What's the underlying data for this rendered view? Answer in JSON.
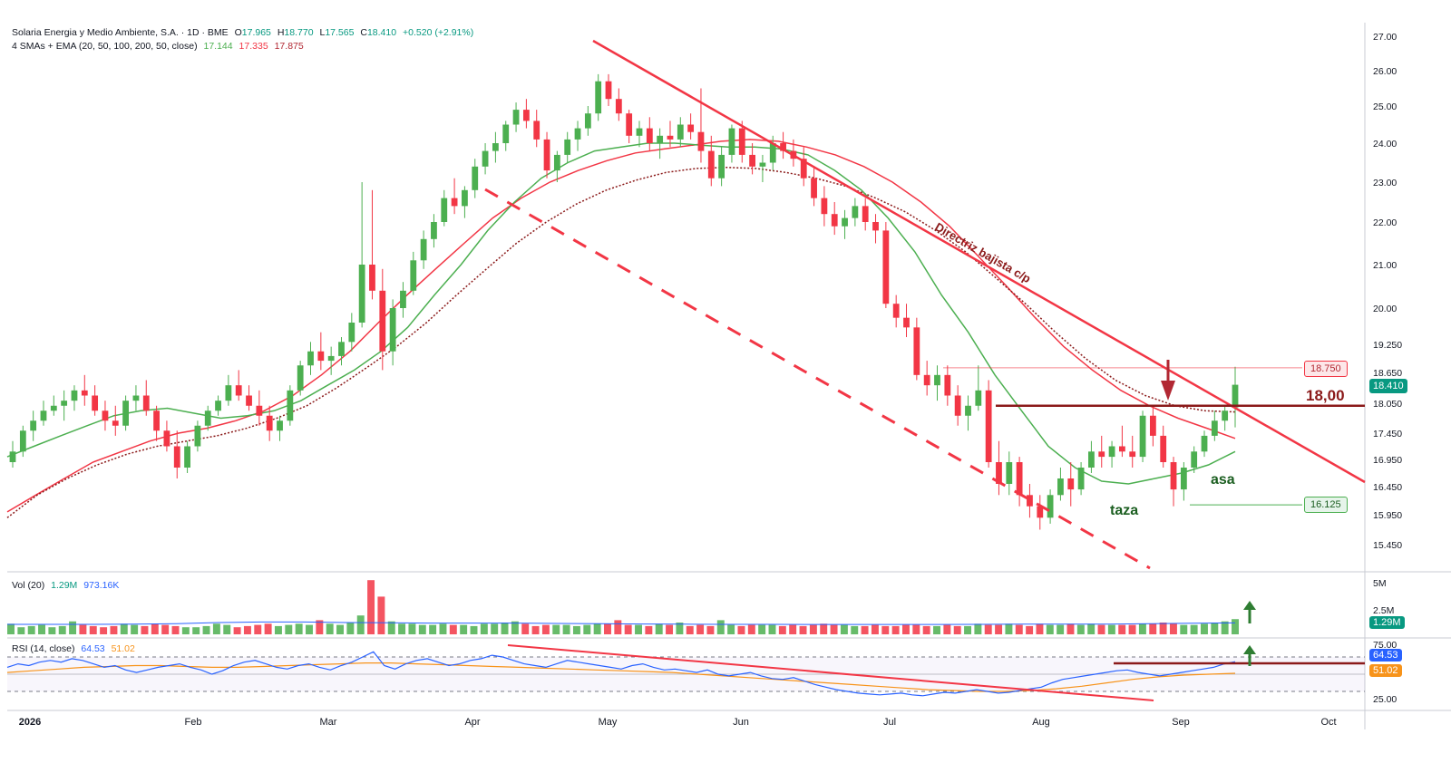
{
  "header": {
    "symbol_line": "Solaria Energia y Medio Ambiente, S.A. · 1D · BME",
    "o_label": "O",
    "o_value": "17.965",
    "h_label": "H",
    "h_value": "18.770",
    "l_label": "L",
    "l_value": "17.565",
    "c_label": "C",
    "c_value": "18.410",
    "change": "+0.520 (+2.91%)",
    "ma_label": "4 SMAs + EMA (20, 50, 100, 200, 50, close)",
    "ma_values": [
      "17.144",
      "17.335",
      "17.875"
    ],
    "ma_colors": [
      "#4caf50",
      "#f23645",
      "#b22833"
    ]
  },
  "volume_legend": {
    "label": "Vol (20)",
    "value1": "1.29M",
    "value2": "973.16K"
  },
  "rsi_legend": {
    "label": "RSI (14, close)",
    "value1": "64.53",
    "value2": "51.02"
  },
  "annotations": {
    "trendline_label": "Directriz bajista c/p",
    "level_label": "18,00",
    "cup_label": "taza",
    "handle_label": "asa",
    "upper_price_tag": "18.750",
    "lower_price_tag": "16.125",
    "last_price_tag": "18.410",
    "vol_tag": "1.29M",
    "vol_tag2": "973.16K",
    "rsi_tag1": "64.53",
    "rsi_tag2": "51.02"
  },
  "colors": {
    "up": "#4caf50",
    "down": "#f23645",
    "ma_green": "#4caf50",
    "ma_red": "#f23645",
    "ma_dotted": "#8b1a1a",
    "trend": "#f23645",
    "level": "#8b1a1a",
    "rsi": "#2962ff",
    "rsi_ma": "#f7931a",
    "arrow_green": "#2e7d32"
  },
  "chart_data": {
    "type": "candlestick",
    "price_axis": {
      "ticks": [
        "27.00",
        "26.00",
        "25.00",
        "24.00",
        "23.00",
        "22.00",
        "21.00",
        "20.00",
        "19.250",
        "18.650",
        "18.050",
        "17.450",
        "16.950",
        "16.450",
        "15.950",
        "15.450"
      ],
      "range": [
        15.2,
        27.2
      ]
    },
    "x_axis": {
      "labels": [
        "2026",
        "Feb",
        "Mar",
        "Apr",
        "May",
        "Jun",
        "Jul",
        "Aug",
        "Sep",
        "Oct"
      ]
    },
    "volume_axis": {
      "ticks": [
        "5M",
        "2.5M"
      ]
    },
    "rsi_axis": {
      "ticks": [
        "75.00",
        "25.00"
      ],
      "levels": [
        70,
        30,
        50
      ]
    },
    "ohlc": [
      [
        16.9,
        17.3,
        16.8,
        17.1
      ],
      [
        17.1,
        17.6,
        17.0,
        17.5
      ],
      [
        17.5,
        17.9,
        17.3,
        17.7
      ],
      [
        17.7,
        18.1,
        17.6,
        17.9
      ],
      [
        17.9,
        18.2,
        17.8,
        18.0
      ],
      [
        18.0,
        18.3,
        17.7,
        18.1
      ],
      [
        18.1,
        18.4,
        17.9,
        18.3
      ],
      [
        18.3,
        18.6,
        18.0,
        18.2
      ],
      [
        18.2,
        18.4,
        17.8,
        17.9
      ],
      [
        17.9,
        18.1,
        17.5,
        17.7
      ],
      [
        17.7,
        18.0,
        17.4,
        17.6
      ],
      [
        17.6,
        18.2,
        17.5,
        18.1
      ],
      [
        18.1,
        18.4,
        17.9,
        18.2
      ],
      [
        18.2,
        18.5,
        17.8,
        17.9
      ],
      [
        17.9,
        18.0,
        17.3,
        17.5
      ],
      [
        17.5,
        17.7,
        17.1,
        17.2
      ],
      [
        17.2,
        17.5,
        16.6,
        16.8
      ],
      [
        16.8,
        17.3,
        16.7,
        17.2
      ],
      [
        17.2,
        17.7,
        17.1,
        17.6
      ],
      [
        17.6,
        18.0,
        17.5,
        17.9
      ],
      [
        17.9,
        18.2,
        17.8,
        18.1
      ],
      [
        18.1,
        18.6,
        18.0,
        18.4
      ],
      [
        18.4,
        18.7,
        18.1,
        18.2
      ],
      [
        18.2,
        18.4,
        17.9,
        18.0
      ],
      [
        18.0,
        18.3,
        17.6,
        17.8
      ],
      [
        17.8,
        18.0,
        17.3,
        17.5
      ],
      [
        17.5,
        17.8,
        17.3,
        17.7
      ],
      [
        17.7,
        18.4,
        17.6,
        18.3
      ],
      [
        18.3,
        18.9,
        18.2,
        18.8
      ],
      [
        18.8,
        19.3,
        18.6,
        19.1
      ],
      [
        19.1,
        19.5,
        18.7,
        18.9
      ],
      [
        18.9,
        19.2,
        18.6,
        19.0
      ],
      [
        19.0,
        19.4,
        18.8,
        19.3
      ],
      [
        19.3,
        19.9,
        19.1,
        19.7
      ],
      [
        19.7,
        23.0,
        19.6,
        21.0
      ],
      [
        21.0,
        22.8,
        20.2,
        20.4
      ],
      [
        20.4,
        20.9,
        18.7,
        19.1
      ],
      [
        19.1,
        20.2,
        18.8,
        20.0
      ],
      [
        20.0,
        20.6,
        19.8,
        20.4
      ],
      [
        20.4,
        21.3,
        20.3,
        21.1
      ],
      [
        21.1,
        21.8,
        20.9,
        21.6
      ],
      [
        21.6,
        22.2,
        21.4,
        22.0
      ],
      [
        22.0,
        22.8,
        21.9,
        22.6
      ],
      [
        22.6,
        23.1,
        22.2,
        22.4
      ],
      [
        22.4,
        22.9,
        22.1,
        22.8
      ],
      [
        22.8,
        23.6,
        22.6,
        23.4
      ],
      [
        23.4,
        24.0,
        23.2,
        23.8
      ],
      [
        23.8,
        24.3,
        23.5,
        24.0
      ],
      [
        24.0,
        24.6,
        23.8,
        24.5
      ],
      [
        24.5,
        25.1,
        24.3,
        24.9
      ],
      [
        24.9,
        25.2,
        24.4,
        24.6
      ],
      [
        24.6,
        24.9,
        23.9,
        24.1
      ],
      [
        24.1,
        24.3,
        23.1,
        23.3
      ],
      [
        23.3,
        23.8,
        23.0,
        23.7
      ],
      [
        23.7,
        24.3,
        23.5,
        24.1
      ],
      [
        24.1,
        24.6,
        23.8,
        24.4
      ],
      [
        24.4,
        25.0,
        24.2,
        24.8
      ],
      [
        24.8,
        25.9,
        24.6,
        25.7
      ],
      [
        25.7,
        25.9,
        25.0,
        25.2
      ],
      [
        25.2,
        25.5,
        24.6,
        24.8
      ],
      [
        24.8,
        24.9,
        24.0,
        24.2
      ],
      [
        24.2,
        24.6,
        23.9,
        24.4
      ],
      [
        24.4,
        24.7,
        23.8,
        24.0
      ],
      [
        24.0,
        24.4,
        23.6,
        24.2
      ],
      [
        24.2,
        24.6,
        23.9,
        24.1
      ],
      [
        24.1,
        24.7,
        23.9,
        24.5
      ],
      [
        24.5,
        24.8,
        24.1,
        24.3
      ],
      [
        24.3,
        25.5,
        23.5,
        23.8
      ],
      [
        23.8,
        24.2,
        22.9,
        23.1
      ],
      [
        23.1,
        23.9,
        22.9,
        23.7
      ],
      [
        23.7,
        24.5,
        23.5,
        24.4
      ],
      [
        24.4,
        24.6,
        23.5,
        23.7
      ],
      [
        23.7,
        24.0,
        23.2,
        23.4
      ],
      [
        23.4,
        23.7,
        23.0,
        23.5
      ],
      [
        23.5,
        24.2,
        23.3,
        24.0
      ],
      [
        24.0,
        24.3,
        23.6,
        23.8
      ],
      [
        23.8,
        24.1,
        23.4,
        23.6
      ],
      [
        23.6,
        23.9,
        22.9,
        23.1
      ],
      [
        23.1,
        23.4,
        22.4,
        22.6
      ],
      [
        22.6,
        22.9,
        21.9,
        22.2
      ],
      [
        22.2,
        22.5,
        21.7,
        21.9
      ],
      [
        21.9,
        22.3,
        21.6,
        22.1
      ],
      [
        22.1,
        22.6,
        21.9,
        22.4
      ],
      [
        22.4,
        22.6,
        21.8,
        22.0
      ],
      [
        22.0,
        22.2,
        21.5,
        21.8
      ],
      [
        21.8,
        22.0,
        20.0,
        20.1
      ],
      [
        20.1,
        20.3,
        19.6,
        19.8
      ],
      [
        19.8,
        20.1,
        19.4,
        19.6
      ],
      [
        19.6,
        19.8,
        18.5,
        18.6
      ],
      [
        18.6,
        18.9,
        18.2,
        18.4
      ],
      [
        18.4,
        18.8,
        18.1,
        18.6
      ],
      [
        18.6,
        18.8,
        18.0,
        18.2
      ],
      [
        18.2,
        18.4,
        17.6,
        17.8
      ],
      [
        17.8,
        18.2,
        17.5,
        18.0
      ],
      [
        18.0,
        18.8,
        17.9,
        18.3
      ],
      [
        18.3,
        18.5,
        16.8,
        16.9
      ],
      [
        16.9,
        17.3,
        16.3,
        16.5
      ],
      [
        16.5,
        17.1,
        16.3,
        16.9
      ],
      [
        16.9,
        17.0,
        16.1,
        16.3
      ],
      [
        16.3,
        16.5,
        15.9,
        16.1
      ],
      [
        16.1,
        16.3,
        15.7,
        15.9
      ],
      [
        15.9,
        16.4,
        15.8,
        16.3
      ],
      [
        16.3,
        16.8,
        16.2,
        16.6
      ],
      [
        16.6,
        16.9,
        16.1,
        16.4
      ],
      [
        16.4,
        16.9,
        16.3,
        16.8
      ],
      [
        16.8,
        17.3,
        16.7,
        17.1
      ],
      [
        17.1,
        17.4,
        16.8,
        17.0
      ],
      [
        17.0,
        17.3,
        16.8,
        17.2
      ],
      [
        17.2,
        17.6,
        17.0,
        17.1
      ],
      [
        17.1,
        17.4,
        16.8,
        17.0
      ],
      [
        17.0,
        17.9,
        16.9,
        17.8
      ],
      [
        17.8,
        18.0,
        17.2,
        17.4
      ],
      [
        17.4,
        17.6,
        16.8,
        16.9
      ],
      [
        16.9,
        17.0,
        16.1,
        16.4
      ],
      [
        16.4,
        16.9,
        16.2,
        16.8
      ],
      [
        16.8,
        17.2,
        16.7,
        17.1
      ],
      [
        17.1,
        17.5,
        17.0,
        17.4
      ],
      [
        17.4,
        17.9,
        17.3,
        17.7
      ],
      [
        17.7,
        18.0,
        17.5,
        17.9
      ],
      [
        17.965,
        18.77,
        17.565,
        18.41
      ]
    ],
    "sma_green": [
      17.0,
      17.2,
      17.4,
      17.6,
      17.8,
      17.9,
      17.95,
      17.85,
      17.75,
      17.8,
      17.9,
      18.1,
      18.4,
      18.7,
      19.1,
      19.6,
      20.3,
      21.0,
      21.8,
      22.5,
      23.1,
      23.5,
      23.8,
      23.9,
      24.0,
      24.0,
      23.95,
      23.9,
      23.9,
      23.85,
      23.7,
      23.3,
      22.8,
      22.1,
      21.3,
      20.3,
      19.5,
      18.6,
      17.9,
      17.2,
      16.8,
      16.55,
      16.5,
      16.6,
      16.7,
      16.85,
      17.1
    ],
    "sma_red": [
      16.0,
      16.3,
      16.6,
      16.9,
      17.1,
      17.3,
      17.45,
      17.55,
      17.7,
      17.9,
      18.2,
      18.6,
      19.1,
      19.7,
      20.3,
      20.9,
      21.5,
      22.1,
      22.6,
      23.0,
      23.3,
      23.55,
      23.75,
      23.85,
      23.95,
      24.05,
      24.1,
      24.05,
      23.9,
      23.7,
      23.4,
      23.0,
      22.5,
      21.9,
      21.2,
      20.5,
      19.8,
      19.2,
      18.7,
      18.3,
      18.0,
      17.75,
      17.55,
      17.35
    ],
    "ema_dotted": [
      15.9,
      16.3,
      16.6,
      16.85,
      17.05,
      17.2,
      17.3,
      17.4,
      17.55,
      17.75,
      18.0,
      18.35,
      18.75,
      19.2,
      19.7,
      20.3,
      20.9,
      21.5,
      22.0,
      22.45,
      22.8,
      23.05,
      23.25,
      23.35,
      23.38,
      23.35,
      23.25,
      23.1,
      22.9,
      22.6,
      22.25,
      21.8,
      21.3,
      20.7,
      20.1,
      19.5,
      18.95,
      18.5,
      18.2,
      18.0,
      17.9,
      17.875
    ],
    "volume": [
      0.9,
      0.6,
      0.7,
      0.8,
      0.6,
      0.7,
      1.1,
      0.8,
      0.7,
      0.6,
      0.7,
      0.9,
      0.8,
      0.7,
      0.9,
      0.8,
      0.7,
      0.6,
      0.6,
      0.7,
      0.9,
      0.8,
      0.6,
      0.7,
      0.8,
      0.9,
      0.7,
      0.8,
      0.9,
      0.8,
      1.2,
      0.9,
      0.8,
      1.0,
      1.6,
      4.6,
      3.2,
      1.1,
      0.9,
      0.9,
      0.8,
      0.8,
      0.9,
      0.8,
      0.8,
      0.7,
      0.9,
      0.9,
      1.0,
      1.1,
      0.9,
      0.7,
      0.8,
      0.8,
      0.8,
      0.7,
      0.8,
      0.9,
      0.9,
      1.2,
      0.8,
      0.8,
      0.7,
      0.9,
      0.8,
      1.0,
      0.7,
      0.8,
      0.7,
      1.2,
      0.8,
      0.7,
      0.8,
      0.8,
      0.8,
      0.7,
      0.8,
      0.7,
      0.8,
      0.9,
      0.8,
      0.8,
      0.7,
      0.7,
      0.8,
      0.7,
      0.7,
      0.8,
      0.8,
      0.7,
      0.7,
      0.8,
      0.7,
      0.7,
      0.9,
      0.8,
      0.8,
      0.9,
      0.8,
      0.7,
      0.9,
      0.8,
      0.8,
      0.9,
      0.8,
      0.9,
      0.8,
      0.8,
      0.8,
      0.8,
      0.9,
      0.9,
      1.0,
      0.9,
      0.8,
      0.8,
      0.9,
      1.0,
      1.1,
      1.29
    ],
    "volume_ma": [
      0.85,
      0.85,
      0.85,
      0.86,
      0.9,
      1.0,
      1.05,
      1.05,
      1.0,
      0.98,
      0.95,
      0.95,
      0.95,
      0.92,
      0.9,
      0.88,
      0.86,
      0.85,
      0.85,
      0.84,
      0.84,
      0.84,
      0.84,
      0.85,
      0.86,
      0.86,
      0.87,
      0.9,
      0.94,
      0.97
    ],
    "rsi": [
      58,
      62,
      60,
      64,
      66,
      64,
      68,
      66,
      62,
      58,
      60,
      55,
      52,
      55,
      58,
      60,
      62,
      58,
      55,
      50,
      54,
      60,
      64,
      66,
      62,
      58,
      56,
      60,
      62,
      58,
      55,
      60,
      64,
      70,
      76,
      60,
      56,
      62,
      66,
      68,
      64,
      60,
      62,
      66,
      68,
      72,
      70,
      66,
      62,
      60,
      58,
      62,
      66,
      64,
      62,
      60,
      58,
      56,
      60,
      62,
      58,
      55,
      56,
      54,
      52,
      55,
      50,
      48,
      50,
      52,
      48,
      45,
      44,
      46,
      42,
      38,
      35,
      32,
      30,
      28,
      27,
      26,
      27,
      28,
      26,
      25,
      27,
      29,
      28,
      30,
      32,
      30,
      28,
      29,
      31,
      33,
      35,
      40,
      44,
      46,
      48,
      50,
      52,
      54,
      55,
      52,
      50,
      48,
      50,
      52,
      54,
      56,
      58,
      62,
      64.53
    ],
    "rsi_ma": [
      52,
      54,
      56,
      58,
      59,
      60,
      60,
      59,
      58,
      58,
      59,
      60,
      61,
      62,
      63,
      63,
      62,
      61,
      60,
      59,
      58,
      57,
      56,
      55,
      54,
      53,
      52,
      50,
      48,
      46,
      44,
      42,
      40,
      38,
      36,
      34,
      32,
      31,
      30,
      30,
      31,
      33,
      36,
      40,
      44,
      47,
      49,
      50,
      51.02
    ]
  }
}
